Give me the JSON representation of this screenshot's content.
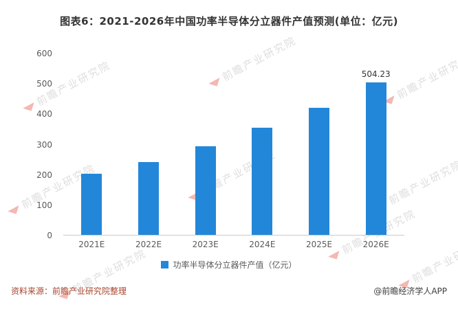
{
  "title": "图表6：2021-2026年中国功率半导体分立器件产值预测(单位：亿元)",
  "chart_data": {
    "type": "bar",
    "categories": [
      "2021E",
      "2022E",
      "2023E",
      "2024E",
      "2025E",
      "2026E"
    ],
    "values": [
      203,
      242,
      293,
      355,
      421,
      504.23
    ],
    "data_labels": [
      "",
      "",
      "",
      "",
      "",
      "504.23"
    ],
    "title": "图表6：2021-2026年中国功率半导体分立器件产值预测(单位：亿元)",
    "xlabel": "",
    "ylabel": "",
    "ylim": [
      0,
      600
    ],
    "yticks": [
      0,
      100,
      200,
      300,
      400,
      500,
      600
    ],
    "grid": false,
    "legend": "功率半导体分立器件产值（亿元）",
    "legend_position": "bottom"
  },
  "footer": {
    "source": "资料来源：前瞻产业研究院整理",
    "credit": "@前瞻经济学人APP"
  },
  "watermark": "前瞻产业研究院",
  "colors": {
    "bar": "#2387d9",
    "source_text": "#a8442e",
    "title_text": "#333333"
  }
}
